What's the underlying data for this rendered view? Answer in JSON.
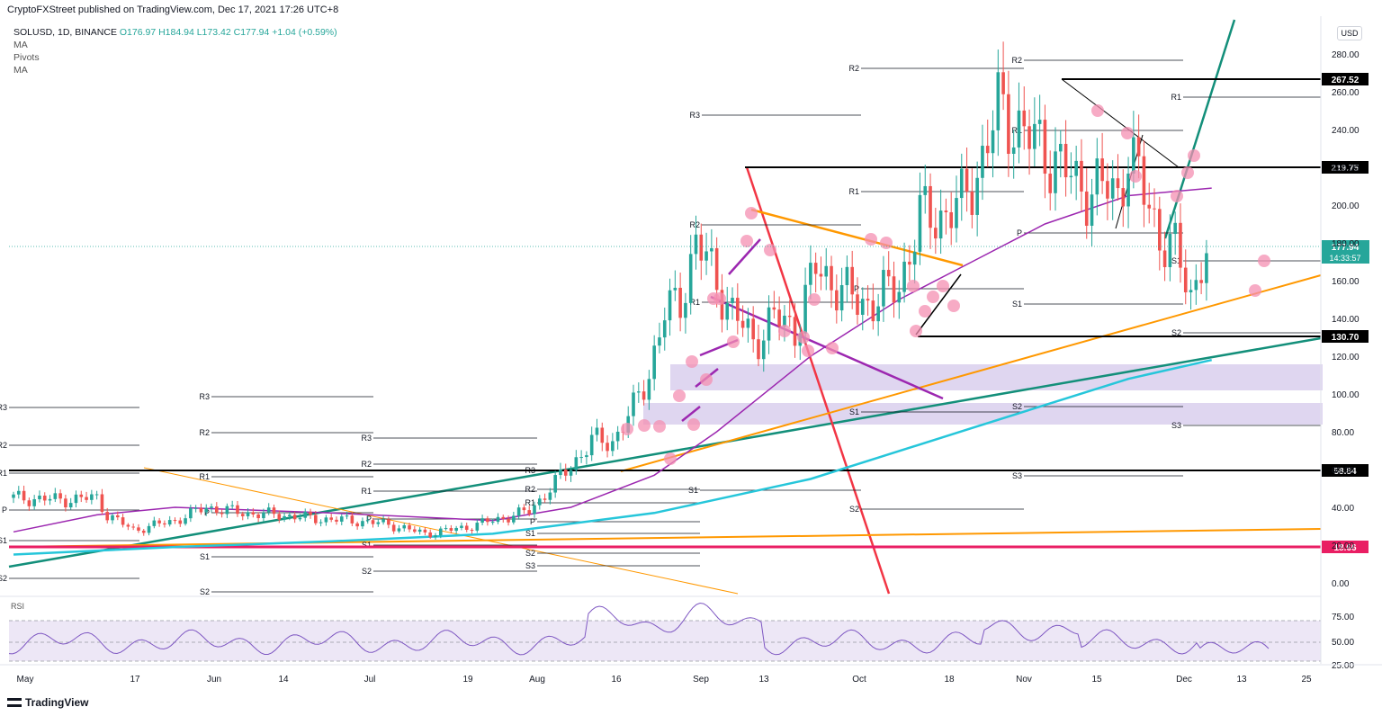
{
  "header": {
    "publish_note": "CryptoFXStreet published on TradingView.com, Dec 17, 2021 17:26 UTC+8"
  },
  "legend": {
    "symbol": "SOLUSD, 1D, BINANCE",
    "open": "O176.97",
    "high": "H184.94",
    "low": "L173.42",
    "close": "C177.94",
    "change": "+1.04 (+0.59%)",
    "indicators": [
      "MA",
      "Pivots",
      "MA"
    ]
  },
  "currency_button": "USD",
  "footer": {
    "logo_text": "TradingView"
  },
  "colors": {
    "up": "#26a69a",
    "down": "#ef5350",
    "ma50": "#9c27b0",
    "ma200": "#26c6da",
    "orange": "#ff9800",
    "green_trend": "#138f7a",
    "red_trend": "#f23645",
    "highlight": "#e91e63",
    "zone": "#d1c4e9",
    "rsi": "#7e57c2"
  },
  "chart_data": {
    "type": "candlestick",
    "symbol": "SOLUSD",
    "interval": "1D",
    "exchange": "BINANCE",
    "price_axis": [
      "280.00",
      "260.00",
      "240.00",
      "220.00",
      "200.00",
      "180.00",
      "160.00",
      "140.00",
      "120.00",
      "100.00",
      "80.00",
      "60.00",
      "40.00",
      "20.00",
      "0.00"
    ],
    "y_scale": "log",
    "x_axis": [
      "May",
      "17",
      "Jun",
      "14",
      "Jul",
      "19",
      "Aug",
      "16",
      "Sep",
      "13",
      "Oct",
      "18",
      "Nov",
      "15",
      "Dec",
      "13",
      "25"
    ],
    "last_price": {
      "value": "177.94",
      "countdown": "14:33:57"
    },
    "horizontal_levels": [
      {
        "value": 267.52,
        "label": "267.52",
        "color": "#000000"
      },
      {
        "value": 219.75,
        "label": "219.75",
        "color": "#000000"
      },
      {
        "value": 130.7,
        "label": "130.70",
        "color": "#000000"
      },
      {
        "value": 58.84,
        "label": "58.84",
        "color": "#000000"
      },
      {
        "value": 18.66,
        "label": "18.66",
        "color": "#e91e63"
      }
    ],
    "pivot_labels": [
      "R3",
      "R2",
      "R1",
      "P",
      "S1",
      "S2",
      "S3"
    ],
    "price_series": [
      {
        "date": "2021-05-01",
        "close": 45
      },
      {
        "date": "2021-05-10",
        "close": 44
      },
      {
        "date": "2021-05-17",
        "close": 45
      },
      {
        "date": "2021-05-19",
        "close": 36
      },
      {
        "date": "2021-05-24",
        "close": 28
      },
      {
        "date": "2021-06-01",
        "close": 33
      },
      {
        "date": "2021-06-07",
        "close": 40
      },
      {
        "date": "2021-06-14",
        "close": 37
      },
      {
        "date": "2021-06-21",
        "close": 36
      },
      {
        "date": "2021-06-28",
        "close": 34
      },
      {
        "date": "2021-07-05",
        "close": 33
      },
      {
        "date": "2021-07-12",
        "close": 31
      },
      {
        "date": "2021-07-19",
        "close": 26
      },
      {
        "date": "2021-07-26",
        "close": 29
      },
      {
        "date": "2021-08-01",
        "close": 33
      },
      {
        "date": "2021-08-08",
        "close": 38
      },
      {
        "date": "2021-08-16",
        "close": 62
      },
      {
        "date": "2021-08-20",
        "close": 75
      },
      {
        "date": "2021-08-24",
        "close": 75
      },
      {
        "date": "2021-08-28",
        "close": 92
      },
      {
        "date": "2021-08-31",
        "close": 112
      },
      {
        "date": "2021-09-03",
        "close": 142
      },
      {
        "date": "2021-09-06",
        "close": 150
      },
      {
        "date": "2021-09-09",
        "close": 180
      },
      {
        "date": "2021-09-13",
        "close": 160
      },
      {
        "date": "2021-09-16",
        "close": 143
      },
      {
        "date": "2021-09-20",
        "close": 128
      },
      {
        "date": "2021-09-24",
        "close": 140
      },
      {
        "date": "2021-09-28",
        "close": 135
      },
      {
        "date": "2021-10-02",
        "close": 166
      },
      {
        "date": "2021-10-06",
        "close": 158
      },
      {
        "date": "2021-10-10",
        "close": 148
      },
      {
        "date": "2021-10-14",
        "close": 150
      },
      {
        "date": "2021-10-18",
        "close": 158
      },
      {
        "date": "2021-10-22",
        "close": 193
      },
      {
        "date": "2021-10-26",
        "close": 195
      },
      {
        "date": "2021-10-30",
        "close": 200
      },
      {
        "date": "2021-11-03",
        "close": 225
      },
      {
        "date": "2021-11-06",
        "close": 250
      },
      {
        "date": "2021-11-09",
        "close": 245
      },
      {
        "date": "2021-11-13",
        "close": 232
      },
      {
        "date": "2021-11-17",
        "close": 225
      },
      {
        "date": "2021-11-21",
        "close": 210
      },
      {
        "date": "2021-11-25",
        "close": 210
      },
      {
        "date": "2021-11-29",
        "close": 205
      },
      {
        "date": "2021-12-01",
        "close": 230
      },
      {
        "date": "2021-12-04",
        "close": 205
      },
      {
        "date": "2021-12-07",
        "close": 185
      },
      {
        "date": "2021-12-10",
        "close": 175
      },
      {
        "date": "2021-12-13",
        "close": 152
      },
      {
        "date": "2021-12-15",
        "close": 172
      },
      {
        "date": "2021-12-17",
        "close": 177.94
      }
    ],
    "ma50_series": [
      {
        "date": "2021-05-01",
        "value": 27
      },
      {
        "date": "2021-05-17",
        "value": 36
      },
      {
        "date": "2021-06-01",
        "value": 40
      },
      {
        "date": "2021-07-01",
        "value": 37
      },
      {
        "date": "2021-08-01",
        "value": 33
      },
      {
        "date": "2021-08-16",
        "value": 40
      },
      {
        "date": "2021-09-01",
        "value": 57
      },
      {
        "date": "2021-09-13",
        "value": 80
      },
      {
        "date": "2021-10-01",
        "value": 120
      },
      {
        "date": "2021-10-18",
        "value": 150
      },
      {
        "date": "2021-11-01",
        "value": 170
      },
      {
        "date": "2021-11-15",
        "value": 190
      },
      {
        "date": "2021-12-01",
        "value": 205
      },
      {
        "date": "2021-12-17",
        "value": 209
      }
    ],
    "ma200_series": [
      {
        "date": "2021-05-01",
        "value": 15
      },
      {
        "date": "2021-06-01",
        "value": 19
      },
      {
        "date": "2021-07-01",
        "value": 22
      },
      {
        "date": "2021-08-01",
        "value": 26
      },
      {
        "date": "2021-09-01",
        "value": 37
      },
      {
        "date": "2021-10-01",
        "value": 55
      },
      {
        "date": "2021-11-01",
        "value": 82
      },
      {
        "date": "2021-12-01",
        "value": 108
      },
      {
        "date": "2021-12-17",
        "value": 118
      }
    ],
    "rsi": {
      "ticks": [
        "75.00",
        "50.00",
        "25.00"
      ],
      "label": "RSI"
    }
  }
}
